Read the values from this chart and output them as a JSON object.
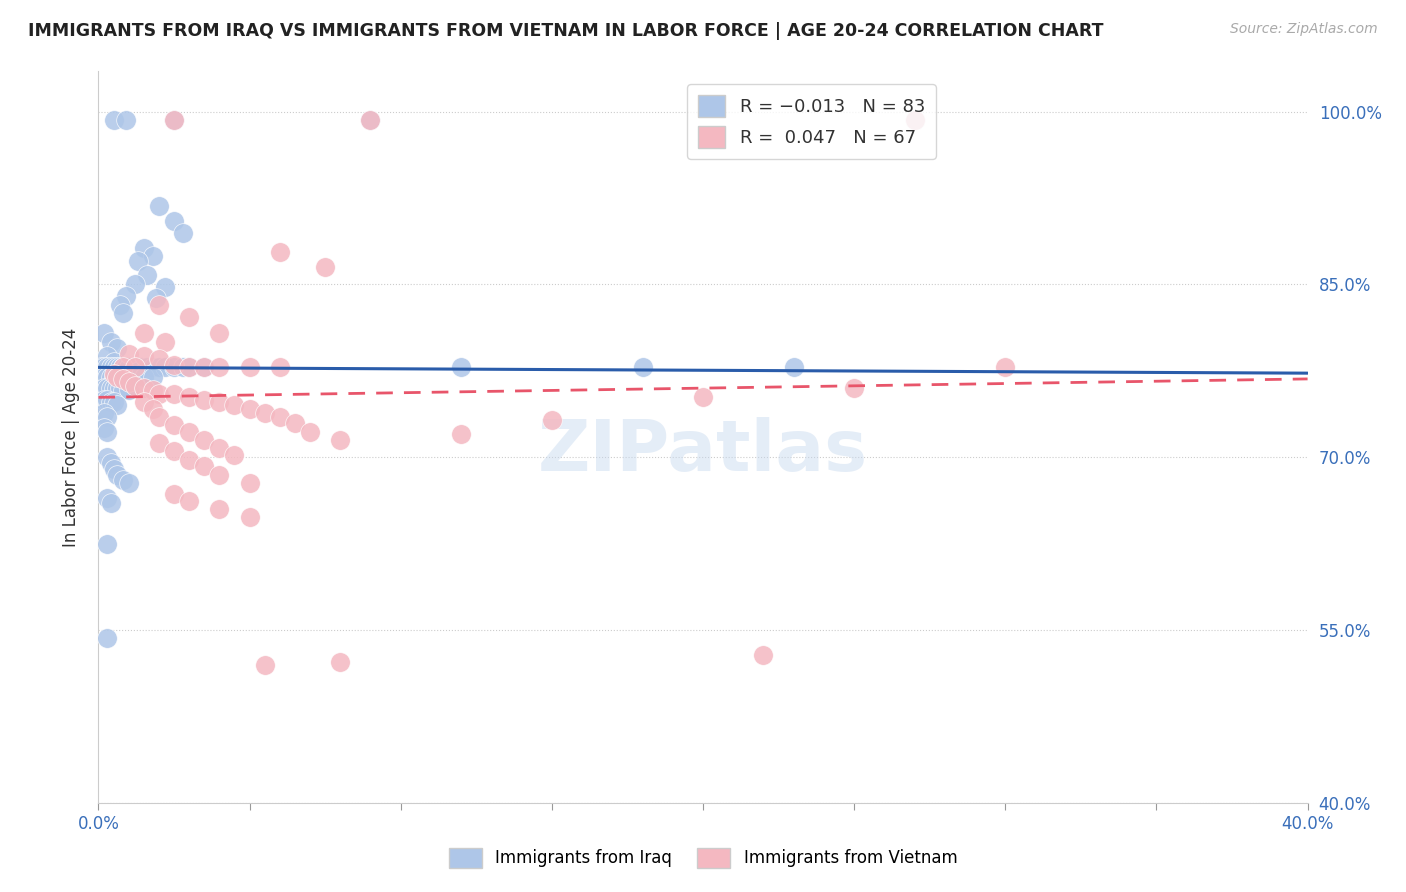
{
  "title": "IMMIGRANTS FROM IRAQ VS IMMIGRANTS FROM VIETNAM IN LABOR FORCE | AGE 20-24 CORRELATION CHART",
  "source": "Source: ZipAtlas.com",
  "ylabel": "In Labor Force | Age 20-24",
  "ylabel_ticks": [
    "100.0%",
    "85.0%",
    "70.0%",
    "55.0%",
    "40.0%"
  ],
  "ylabel_tick_vals": [
    1.0,
    0.85,
    0.7,
    0.55,
    0.4
  ],
  "xmin": 0.0,
  "xmax": 0.4,
  "ymin": 0.4,
  "ymax": 1.035,
  "iraq_color": "#aec6e8",
  "vietnam_color": "#f4b8c1",
  "iraq_line_color": "#2a5caa",
  "vietnam_line_color": "#e8556a",
  "watermark_text": "ZIPatlas",
  "iraq_line_x": [
    0.0,
    0.4
  ],
  "iraq_line_y": [
    0.778,
    0.773
  ],
  "vietnam_line_x": [
    0.0,
    0.4
  ],
  "vietnam_line_y": [
    0.752,
    0.768
  ],
  "iraq_points": [
    [
      0.005,
      0.993
    ],
    [
      0.009,
      0.993
    ],
    [
      0.025,
      0.993
    ],
    [
      0.09,
      0.993
    ],
    [
      0.27,
      0.993
    ],
    [
      0.02,
      0.918
    ],
    [
      0.025,
      0.905
    ],
    [
      0.028,
      0.895
    ],
    [
      0.015,
      0.882
    ],
    [
      0.018,
      0.875
    ],
    [
      0.013,
      0.87
    ],
    [
      0.016,
      0.858
    ],
    [
      0.022,
      0.848
    ],
    [
      0.019,
      0.838
    ],
    [
      0.012,
      0.85
    ],
    [
      0.009,
      0.84
    ],
    [
      0.007,
      0.832
    ],
    [
      0.008,
      0.825
    ],
    [
      0.002,
      0.808
    ],
    [
      0.004,
      0.8
    ],
    [
      0.006,
      0.795
    ],
    [
      0.003,
      0.788
    ],
    [
      0.005,
      0.783
    ],
    [
      0.001,
      0.778
    ],
    [
      0.002,
      0.778
    ],
    [
      0.003,
      0.778
    ],
    [
      0.004,
      0.778
    ],
    [
      0.005,
      0.778
    ],
    [
      0.006,
      0.778
    ],
    [
      0.007,
      0.778
    ],
    [
      0.008,
      0.778
    ],
    [
      0.009,
      0.778
    ],
    [
      0.01,
      0.778
    ],
    [
      0.012,
      0.778
    ],
    [
      0.014,
      0.778
    ],
    [
      0.016,
      0.778
    ],
    [
      0.018,
      0.778
    ],
    [
      0.02,
      0.778
    ],
    [
      0.022,
      0.778
    ],
    [
      0.025,
      0.778
    ],
    [
      0.028,
      0.778
    ],
    [
      0.03,
      0.778
    ],
    [
      0.035,
      0.778
    ],
    [
      0.002,
      0.77
    ],
    [
      0.003,
      0.77
    ],
    [
      0.004,
      0.77
    ],
    [
      0.005,
      0.77
    ],
    [
      0.006,
      0.77
    ],
    [
      0.007,
      0.77
    ],
    [
      0.008,
      0.77
    ],
    [
      0.009,
      0.77
    ],
    [
      0.01,
      0.77
    ],
    [
      0.012,
      0.77
    ],
    [
      0.015,
      0.77
    ],
    [
      0.018,
      0.77
    ],
    [
      0.002,
      0.76
    ],
    [
      0.003,
      0.76
    ],
    [
      0.004,
      0.76
    ],
    [
      0.005,
      0.76
    ],
    [
      0.006,
      0.76
    ],
    [
      0.007,
      0.76
    ],
    [
      0.008,
      0.758
    ],
    [
      0.01,
      0.758
    ],
    [
      0.002,
      0.75
    ],
    [
      0.003,
      0.75
    ],
    [
      0.004,
      0.748
    ],
    [
      0.005,
      0.748
    ],
    [
      0.006,
      0.745
    ],
    [
      0.002,
      0.738
    ],
    [
      0.003,
      0.735
    ],
    [
      0.002,
      0.725
    ],
    [
      0.003,
      0.722
    ],
    [
      0.12,
      0.778
    ],
    [
      0.18,
      0.778
    ],
    [
      0.23,
      0.778
    ],
    [
      0.003,
      0.7
    ],
    [
      0.004,
      0.695
    ],
    [
      0.005,
      0.69
    ],
    [
      0.006,
      0.685
    ],
    [
      0.008,
      0.68
    ],
    [
      0.01,
      0.678
    ],
    [
      0.003,
      0.665
    ],
    [
      0.004,
      0.66
    ],
    [
      0.003,
      0.625
    ],
    [
      0.003,
      0.543
    ]
  ],
  "vietnam_points": [
    [
      0.025,
      0.993
    ],
    [
      0.09,
      0.993
    ],
    [
      0.27,
      0.993
    ],
    [
      0.06,
      0.878
    ],
    [
      0.075,
      0.865
    ],
    [
      0.02,
      0.832
    ],
    [
      0.03,
      0.822
    ],
    [
      0.04,
      0.808
    ],
    [
      0.015,
      0.808
    ],
    [
      0.022,
      0.8
    ],
    [
      0.01,
      0.79
    ],
    [
      0.015,
      0.788
    ],
    [
      0.02,
      0.785
    ],
    [
      0.025,
      0.78
    ],
    [
      0.03,
      0.778
    ],
    [
      0.035,
      0.778
    ],
    [
      0.04,
      0.778
    ],
    [
      0.05,
      0.778
    ],
    [
      0.06,
      0.778
    ],
    [
      0.008,
      0.778
    ],
    [
      0.012,
      0.778
    ],
    [
      0.005,
      0.772
    ],
    [
      0.006,
      0.77
    ],
    [
      0.008,
      0.768
    ],
    [
      0.01,
      0.765
    ],
    [
      0.012,
      0.762
    ],
    [
      0.015,
      0.76
    ],
    [
      0.018,
      0.758
    ],
    [
      0.02,
      0.755
    ],
    [
      0.025,
      0.755
    ],
    [
      0.03,
      0.752
    ],
    [
      0.035,
      0.75
    ],
    [
      0.04,
      0.748
    ],
    [
      0.045,
      0.745
    ],
    [
      0.05,
      0.742
    ],
    [
      0.055,
      0.738
    ],
    [
      0.06,
      0.735
    ],
    [
      0.065,
      0.73
    ],
    [
      0.07,
      0.722
    ],
    [
      0.08,
      0.715
    ],
    [
      0.015,
      0.748
    ],
    [
      0.018,
      0.742
    ],
    [
      0.02,
      0.735
    ],
    [
      0.025,
      0.728
    ],
    [
      0.03,
      0.722
    ],
    [
      0.035,
      0.715
    ],
    [
      0.04,
      0.708
    ],
    [
      0.045,
      0.702
    ],
    [
      0.02,
      0.712
    ],
    [
      0.025,
      0.705
    ],
    [
      0.03,
      0.698
    ],
    [
      0.035,
      0.692
    ],
    [
      0.04,
      0.685
    ],
    [
      0.05,
      0.678
    ],
    [
      0.025,
      0.668
    ],
    [
      0.03,
      0.662
    ],
    [
      0.04,
      0.655
    ],
    [
      0.05,
      0.648
    ],
    [
      0.12,
      0.72
    ],
    [
      0.15,
      0.732
    ],
    [
      0.2,
      0.752
    ],
    [
      0.25,
      0.76
    ],
    [
      0.3,
      0.778
    ],
    [
      0.08,
      0.522
    ],
    [
      0.22,
      0.528
    ],
    [
      0.055,
      0.52
    ]
  ]
}
